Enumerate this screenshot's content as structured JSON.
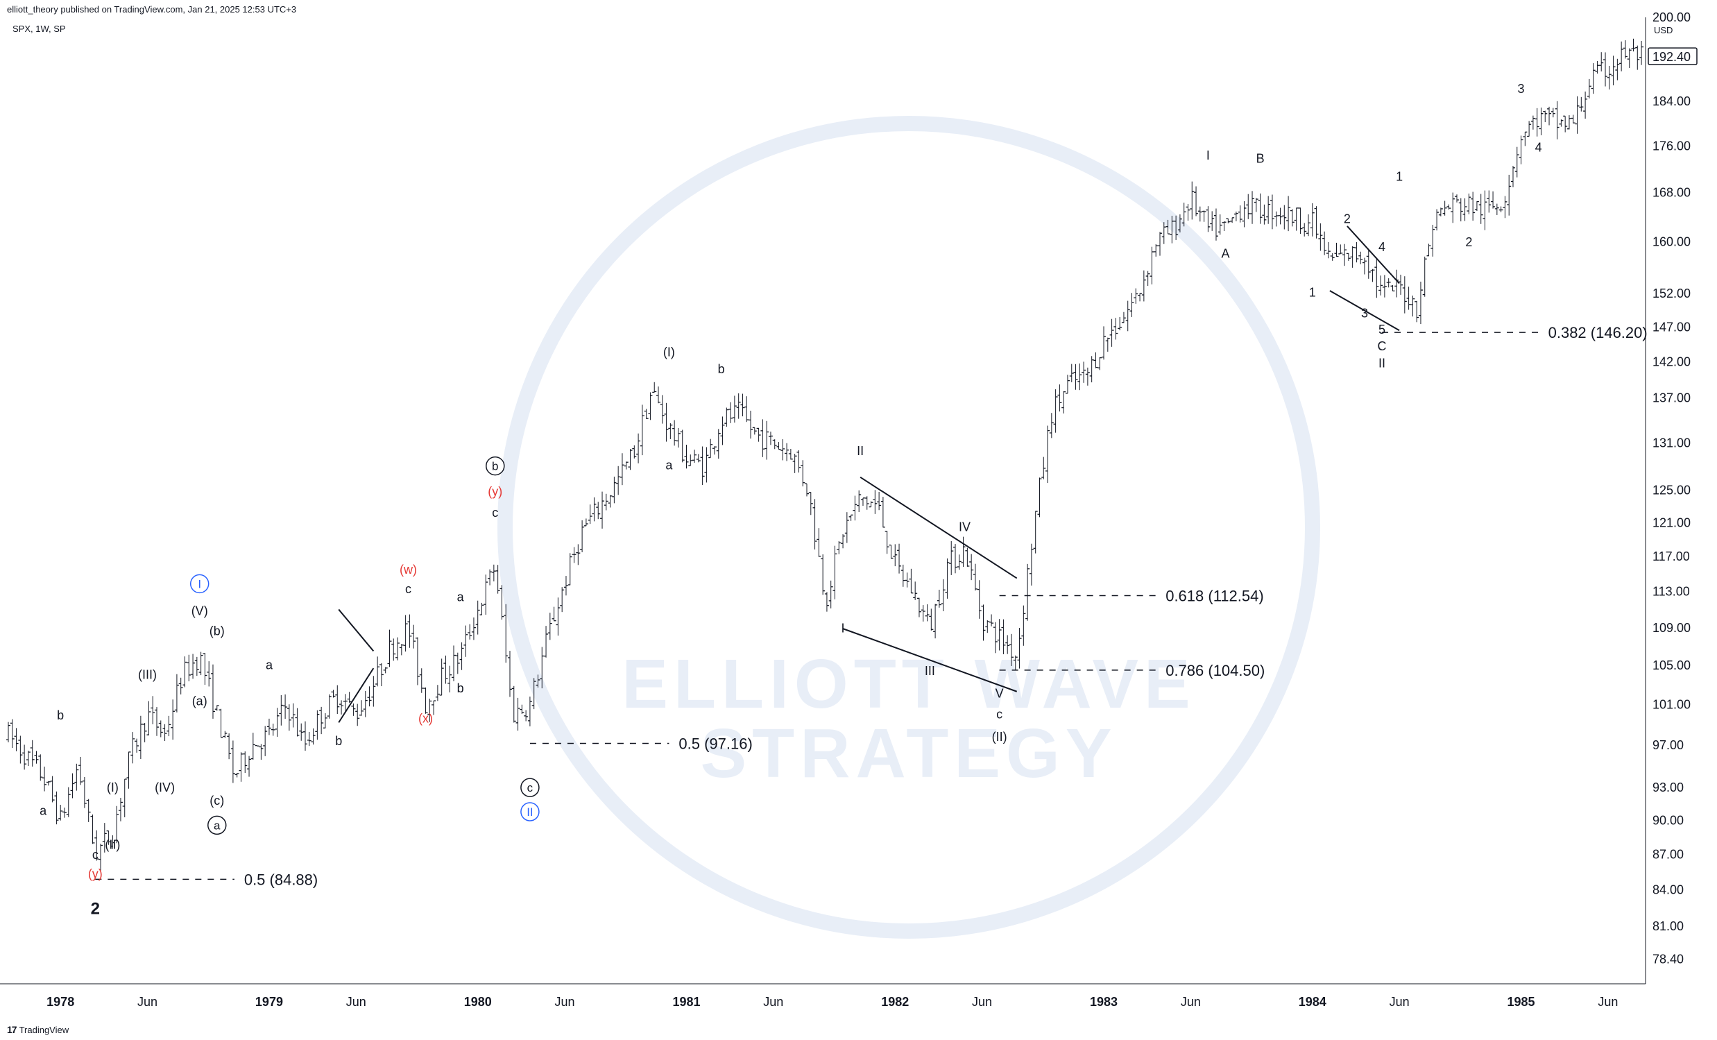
{
  "header": {
    "published": "elliott_theory published on TradingView.com, Jan 21, 2025 12:53 UTC+3",
    "symbol": "SPX, 1W, SP"
  },
  "footer": {
    "logo": "17",
    "brand": "TradingView"
  },
  "watermark": {
    "line1": "ELLIOTT WAVE",
    "line2": "STRATEGY"
  },
  "colors": {
    "candle": "#131722",
    "red_label": "#e53935",
    "blue_label": "#2962ff",
    "grid_axis": "#b2b5be",
    "watermark": "#e8eef7"
  },
  "chart_data": {
    "type": "candlestick",
    "symbol": "SPX",
    "interval": "1W",
    "currency": "USD",
    "y_scale": "log",
    "ylim": [
      76.5,
      200
    ],
    "last_price": "192.40",
    "x_range": [
      "1977-10",
      "1985-08"
    ],
    "y_ticks": [
      "200.00",
      "192.40",
      "184.00",
      "176.00",
      "168.00",
      "160.00",
      "152.00",
      "147.00",
      "142.00",
      "137.00",
      "131.00",
      "125.00",
      "121.00",
      "117.00",
      "113.00",
      "109.00",
      "105.00",
      "101.00",
      "97.00",
      "93.00",
      "90.00",
      "87.00",
      "84.00",
      "81.00",
      "78.40"
    ],
    "x_ticks": [
      {
        "t": "1978-01",
        "label": "1978",
        "bold": true
      },
      {
        "t": "1978-06",
        "label": "Jun",
        "bold": false
      },
      {
        "t": "1979-01",
        "label": "1979",
        "bold": true
      },
      {
        "t": "1979-06",
        "label": "Jun",
        "bold": false
      },
      {
        "t": "1980-01",
        "label": "1980",
        "bold": true
      },
      {
        "t": "1980-06",
        "label": "Jun",
        "bold": false
      },
      {
        "t": "1981-01",
        "label": "1981",
        "bold": true
      },
      {
        "t": "1981-06",
        "label": "Jun",
        "bold": false
      },
      {
        "t": "1982-01",
        "label": "1982",
        "bold": true
      },
      {
        "t": "1982-06",
        "label": "Jun",
        "bold": false
      },
      {
        "t": "1983-01",
        "label": "1983",
        "bold": true
      },
      {
        "t": "1983-06",
        "label": "Jun",
        "bold": false
      },
      {
        "t": "1984-01",
        "label": "1984",
        "bold": true
      },
      {
        "t": "1984-06",
        "label": "Jun",
        "bold": false
      },
      {
        "t": "1985-01",
        "label": "1985",
        "bold": true
      },
      {
        "t": "1985-06",
        "label": "Jun",
        "bold": false
      }
    ],
    "price_path": [
      [
        "1977-10",
        98
      ],
      [
        "1977-12",
        94
      ],
      [
        "1978-01",
        90
      ],
      [
        "1978-02",
        95
      ],
      [
        "1978-03",
        87
      ],
      [
        "1978-04",
        89
      ],
      [
        "1978-05",
        96
      ],
      [
        "1978-06",
        100
      ],
      [
        "1978-07",
        98
      ],
      [
        "1978-08",
        104
      ],
      [
        "1978-09",
        106
      ],
      [
        "1978-10",
        100
      ],
      [
        "1978-11",
        94
      ],
      [
        "1978-12",
        97
      ],
      [
        "1979-01",
        98
      ],
      [
        "1979-02",
        101
      ],
      [
        "1979-03",
        97
      ],
      [
        "1979-04",
        100
      ],
      [
        "1979-05",
        102
      ],
      [
        "1979-06",
        100
      ],
      [
        "1979-07",
        103
      ],
      [
        "1979-08",
        107
      ],
      [
        "1979-09",
        109
      ],
      [
        "1979-10",
        101
      ],
      [
        "1979-11",
        104
      ],
      [
        "1979-12",
        106
      ],
      [
        "1980-01",
        111
      ],
      [
        "1980-02",
        116
      ],
      [
        "1980-03",
        100
      ],
      [
        "1980-04",
        101
      ],
      [
        "1980-05",
        108
      ],
      [
        "1980-06",
        114
      ],
      [
        "1980-07",
        120
      ],
      [
        "1980-08",
        123
      ],
      [
        "1980-09",
        126
      ],
      [
        "1980-10",
        130
      ],
      [
        "1980-11",
        138
      ],
      [
        "1980-12",
        133
      ],
      [
        "1981-01",
        129
      ],
      [
        "1981-02",
        128
      ],
      [
        "1981-03",
        134
      ],
      [
        "1981-04",
        135
      ],
      [
        "1981-05",
        132
      ],
      [
        "1981-06",
        131
      ],
      [
        "1981-07",
        130
      ],
      [
        "1981-08",
        125
      ],
      [
        "1981-09",
        112
      ],
      [
        "1981-10",
        120
      ],
      [
        "1981-11",
        124
      ],
      [
        "1981-12",
        123
      ],
      [
        "1982-01",
        116
      ],
      [
        "1982-02",
        113
      ],
      [
        "1982-03",
        109
      ],
      [
        "1982-04",
        116
      ],
      [
        "1982-05",
        118
      ],
      [
        "1982-06",
        110
      ],
      [
        "1982-07",
        108
      ],
      [
        "1982-08",
        106
      ],
      [
        "1982-09",
        121
      ],
      [
        "1982-10",
        135
      ],
      [
        "1982-11",
        139
      ],
      [
        "1982-12",
        140
      ],
      [
        "1983-01",
        145
      ],
      [
        "1983-02",
        148
      ],
      [
        "1983-03",
        152
      ],
      [
        "1983-04",
        160
      ],
      [
        "1983-05",
        162
      ],
      [
        "1983-06",
        167
      ],
      [
        "1983-07",
        162
      ],
      [
        "1983-08",
        162
      ],
      [
        "1983-09",
        166
      ],
      [
        "1983-10",
        165
      ],
      [
        "1983-11",
        165
      ],
      [
        "1983-12",
        164
      ],
      [
        "1984-01",
        163
      ],
      [
        "1984-02",
        157
      ],
      [
        "1984-03",
        158
      ],
      [
        "1984-04",
        158
      ],
      [
        "1984-05",
        152
      ],
      [
        "1984-06",
        153
      ],
      [
        "1984-07",
        150
      ],
      [
        "1984-08",
        164
      ],
      [
        "1984-09",
        166
      ],
      [
        "1984-10",
        166
      ],
      [
        "1984-11",
        165
      ],
      [
        "1984-12",
        167
      ],
      [
        "1985-01",
        178
      ],
      [
        "1985-02",
        181
      ],
      [
        "1985-03",
        180
      ],
      [
        "1985-04",
        180
      ],
      [
        "1985-05",
        188
      ],
      [
        "1985-06",
        190
      ],
      [
        "1985-07",
        193
      ],
      [
        "1985-08",
        192.4
      ]
    ],
    "annotations": [
      {
        "text": "a",
        "t": "1977-12",
        "p": 90.5,
        "style": "plain"
      },
      {
        "text": "b",
        "t": "1978-01",
        "p": 99.5,
        "style": "plain"
      },
      {
        "text": "c",
        "t": "1978-03",
        "p": 86.6,
        "style": "plain"
      },
      {
        "text": "(y)",
        "t": "1978-03",
        "p": 85.0,
        "style": "red"
      },
      {
        "text": "2",
        "t": "1978-03",
        "p": 82.0,
        "style": "bold"
      },
      {
        "text": "(I)",
        "t": "1978-04",
        "p": 92.6,
        "style": "plain"
      },
      {
        "text": "(II)",
        "t": "1978-04",
        "p": 87.5,
        "style": "plain"
      },
      {
        "text": "(III)",
        "t": "1978-06",
        "p": 103.6,
        "style": "plain"
      },
      {
        "text": "(IV)",
        "t": "1978-07",
        "p": 92.6,
        "style": "plain"
      },
      {
        "text": "(V)",
        "t": "1978-09",
        "p": 110.4,
        "style": "plain"
      },
      {
        "text": "I",
        "t": "1978-09",
        "p": 113.4,
        "style": "circle-blue"
      },
      {
        "text": "(b)",
        "t": "1978-10",
        "p": 108.2,
        "style": "plain"
      },
      {
        "text": "(a)",
        "t": "1978-09",
        "p": 100.9,
        "style": "plain"
      },
      {
        "text": "(c)",
        "t": "1978-10",
        "p": 91.4,
        "style": "plain"
      },
      {
        "text": "a",
        "t": "1978-10",
        "p": 89.2,
        "style": "circle"
      },
      {
        "text": "a",
        "t": "1979-01",
        "p": 104.6,
        "style": "plain"
      },
      {
        "text": "b",
        "t": "1979-05",
        "p": 97.0,
        "style": "plain"
      },
      {
        "text": "(w)",
        "t": "1979-09",
        "p": 115.0,
        "style": "red"
      },
      {
        "text": "c",
        "t": "1979-09",
        "p": 112.8,
        "style": "plain"
      },
      {
        "text": "(x)",
        "t": "1979-10",
        "p": 99.2,
        "style": "red"
      },
      {
        "text": "a",
        "t": "1979-12",
        "p": 111.9,
        "style": "plain"
      },
      {
        "text": "b",
        "t": "1979-12",
        "p": 102.2,
        "style": "plain"
      },
      {
        "text": "b",
        "t": "1980-02",
        "p": 127.5,
        "style": "circle"
      },
      {
        "text": "(y)",
        "t": "1980-02",
        "p": 124.3,
        "style": "red"
      },
      {
        "text": "c",
        "t": "1980-02",
        "p": 121.7,
        "style": "plain"
      },
      {
        "text": "c",
        "t": "1980-04",
        "p": 92.6,
        "style": "circle"
      },
      {
        "text": "II",
        "t": "1980-04",
        "p": 90.4,
        "style": "circle-blue"
      },
      {
        "text": "(I)",
        "t": "1980-12",
        "p": 142.8,
        "style": "plain"
      },
      {
        "text": "a",
        "t": "1980-12",
        "p": 127.6,
        "style": "plain"
      },
      {
        "text": "b",
        "t": "1981-03",
        "p": 140.4,
        "style": "plain"
      },
      {
        "text": "I",
        "t": "1981-10",
        "p": 108.5,
        "style": "plain"
      },
      {
        "text": "II",
        "t": "1981-11",
        "p": 129.4,
        "style": "plain"
      },
      {
        "text": "III",
        "t": "1982-03",
        "p": 104.0,
        "style": "plain"
      },
      {
        "text": "IV",
        "t": "1982-05",
        "p": 120.0,
        "style": "plain"
      },
      {
        "text": "V",
        "t": "1982-07",
        "p": 101.7,
        "style": "plain"
      },
      {
        "text": "c",
        "t": "1982-07",
        "p": 99.6,
        "style": "plain"
      },
      {
        "text": "(II)",
        "t": "1982-07",
        "p": 97.4,
        "style": "plain"
      },
      {
        "text": "I",
        "t": "1983-07",
        "p": 173.6,
        "style": "plain"
      },
      {
        "text": "A",
        "t": "1983-08",
        "p": 157.5,
        "style": "plain"
      },
      {
        "text": "B",
        "t": "1983-10",
        "p": 173.1,
        "style": "plain"
      },
      {
        "text": "1",
        "t": "1984-01",
        "p": 151.5,
        "style": "plain"
      },
      {
        "text": "2",
        "t": "1984-03",
        "p": 163.0,
        "style": "plain"
      },
      {
        "text": "3",
        "t": "1984-04",
        "p": 148.4,
        "style": "plain"
      },
      {
        "text": "4",
        "t": "1984-05",
        "p": 158.5,
        "style": "plain"
      },
      {
        "text": "5",
        "t": "1984-05",
        "p": 146.0,
        "style": "plain"
      },
      {
        "text": "C",
        "t": "1984-05",
        "p": 143.6,
        "style": "plain"
      },
      {
        "text": "II",
        "t": "1984-05",
        "p": 141.2,
        "style": "plain"
      },
      {
        "text": "1",
        "t": "1984-06",
        "p": 170.0,
        "style": "plain"
      },
      {
        "text": "2",
        "t": "1984-10",
        "p": 159.3,
        "style": "plain"
      },
      {
        "text": "3",
        "t": "1985-01",
        "p": 185.5,
        "style": "plain"
      },
      {
        "text": "4",
        "t": "1985-02",
        "p": 175.0,
        "style": "plain"
      }
    ],
    "fib_levels": [
      {
        "label": "0.5 (84.88)",
        "p": 84.88,
        "t_from": "1978-03",
        "t_to": "1978-11"
      },
      {
        "label": "0.5 (97.16)",
        "p": 97.16,
        "t_from": "1980-04",
        "t_to": "1980-12"
      },
      {
        "label": "0.618 (112.54)",
        "p": 112.54,
        "t_from": "1982-07",
        "t_to": "1983-04"
      },
      {
        "label": "0.786 (104.50)",
        "p": 104.5,
        "t_from": "1982-07",
        "t_to": "1983-04"
      },
      {
        "label": "0.382 (146.20)",
        "p": 146.2,
        "t_from": "1984-05",
        "t_to": "1985-02"
      }
    ],
    "trendlines": [
      {
        "from": [
          "1979-05",
          111
        ],
        "to": [
          "1979-07",
          106.5
        ]
      },
      {
        "from": [
          "1979-05",
          99.2
        ],
        "to": [
          "1979-07",
          104.7
        ]
      },
      {
        "from": [
          "1981-10",
          108.9
        ],
        "to": [
          "1982-08",
          102.3
        ]
      },
      {
        "from": [
          "1981-11",
          126.6
        ],
        "to": [
          "1982-08",
          114.5
        ]
      },
      {
        "from": [
          "1984-02",
          152.4
        ],
        "to": [
          "1984-06",
          146.5
        ]
      },
      {
        "from": [
          "1984-03",
          162.5
        ],
        "to": [
          "1984-06",
          153.5
        ]
      }
    ]
  }
}
